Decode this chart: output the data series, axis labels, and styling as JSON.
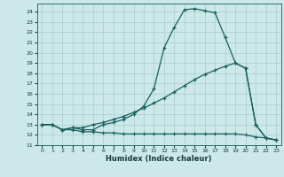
{
  "xlabel": "Humidex (Indice chaleur)",
  "bg_color": "#cce8e8",
  "grid_color": "#aacece",
  "line_color": "#1a6060",
  "xlim": [
    -0.5,
    23.5
  ],
  "ylim": [
    11,
    24.8
  ],
  "xticks": [
    0,
    1,
    2,
    3,
    4,
    5,
    6,
    7,
    8,
    9,
    10,
    11,
    12,
    13,
    14,
    15,
    16,
    17,
    18,
    19,
    20,
    21,
    22,
    23
  ],
  "yticks": [
    11,
    12,
    13,
    14,
    15,
    16,
    17,
    18,
    19,
    20,
    21,
    22,
    23,
    24
  ],
  "line1_x": [
    0,
    1,
    2,
    3,
    4,
    5,
    6,
    7,
    8,
    9,
    10,
    11,
    12,
    13,
    14,
    15,
    16,
    17,
    18,
    19,
    20,
    21,
    22,
    23
  ],
  "line1_y": [
    13,
    13,
    12.5,
    12.7,
    12.5,
    12.5,
    13.0,
    13.2,
    13.5,
    14.0,
    14.8,
    16.5,
    20.5,
    22.5,
    24.2,
    24.3,
    24.1,
    23.9,
    21.5,
    19.0,
    18.5,
    13.0,
    11.7,
    11.5
  ],
  "line2_x": [
    0,
    1,
    2,
    3,
    4,
    5,
    6,
    7,
    8,
    9,
    10,
    11,
    12,
    13,
    14,
    15,
    16,
    17,
    18,
    19,
    20,
    21,
    22,
    23
  ],
  "line2_y": [
    13,
    13,
    12.5,
    12.7,
    12.7,
    13.0,
    13.2,
    13.5,
    13.8,
    14.2,
    14.6,
    15.1,
    15.6,
    16.2,
    16.8,
    17.4,
    17.9,
    18.3,
    18.7,
    19.0,
    18.5,
    13.0,
    11.7,
    11.5
  ],
  "line3_x": [
    0,
    1,
    2,
    3,
    4,
    5,
    6,
    7,
    8,
    9,
    10,
    11,
    12,
    13,
    14,
    15,
    16,
    17,
    18,
    19,
    20,
    21,
    22,
    23
  ],
  "line3_y": [
    13,
    13,
    12.5,
    12.5,
    12.3,
    12.3,
    12.2,
    12.2,
    12.1,
    12.1,
    12.1,
    12.1,
    12.1,
    12.1,
    12.1,
    12.1,
    12.1,
    12.1,
    12.1,
    12.1,
    12.0,
    11.8,
    11.7,
    11.5
  ]
}
